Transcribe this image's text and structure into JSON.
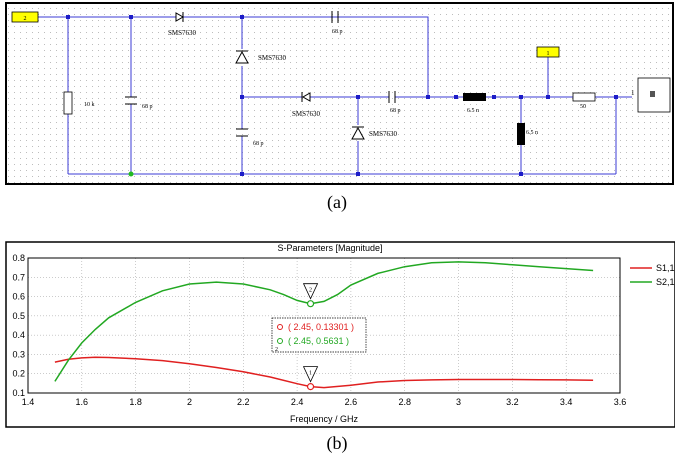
{
  "captions": {
    "a": "(a)",
    "b": "(b)"
  },
  "schematic": {
    "port_left": "2",
    "port_top": "1",
    "port_right": "1",
    "diode_label": "SMS7630",
    "cap_label": "68 p",
    "resistor_left": "10 k",
    "inductor_series": "6.5 n",
    "inductor_shunt": "6.5 n",
    "resistor_right": "50",
    "term_num": "1",
    "colors": {
      "wire": "#3b3bd6",
      "port": "#ffff00",
      "node": "#1c1cc8",
      "ground": "#22bb22"
    }
  },
  "plot": {
    "title": "S-Parameters [Magnitude]",
    "xlabel": "Frequency / GHz",
    "marker_labels": [
      "2",
      "1"
    ],
    "readout_s11": "( 2.45, 0.13301 )",
    "readout_s21": "( 2.45, 0.5631 )",
    "readout_num": "2",
    "colors": {
      "s11": "#e02020",
      "s21": "#22a822"
    }
  },
  "chart_data": {
    "type": "line",
    "title": "S-Parameters [Magnitude]",
    "xlabel": "Frequency / GHz",
    "ylabel": "",
    "xlim": [
      1.4,
      3.6
    ],
    "ylim": [
      0.1,
      0.8
    ],
    "xticks": [
      "1.4",
      "1.6",
      "1.8",
      "2",
      "2.2",
      "2.4",
      "2.6",
      "2.8",
      "3",
      "3.2",
      "3.4",
      "3.6"
    ],
    "yticks": [
      "0.1",
      "0.2",
      "0.3",
      "0.4",
      "0.5",
      "0.6",
      "0.7",
      "0.8"
    ],
    "grid": true,
    "legend": "right",
    "series": [
      {
        "name": "S1,1",
        "x": [
          1.5,
          1.55,
          1.6,
          1.65,
          1.7,
          1.8,
          1.9,
          2.0,
          2.1,
          2.2,
          2.3,
          2.4,
          2.45,
          2.5,
          2.6,
          2.7,
          2.8,
          2.9,
          3.0,
          3.1,
          3.2,
          3.3,
          3.4,
          3.5
        ],
        "y": [
          0.26,
          0.275,
          0.282,
          0.285,
          0.284,
          0.278,
          0.268,
          0.252,
          0.232,
          0.21,
          0.183,
          0.148,
          0.133,
          0.128,
          0.14,
          0.157,
          0.165,
          0.168,
          0.17,
          0.17,
          0.17,
          0.169,
          0.168,
          0.166
        ]
      },
      {
        "name": "S2,1",
        "x": [
          1.5,
          1.55,
          1.6,
          1.65,
          1.7,
          1.8,
          1.9,
          2.0,
          2.1,
          2.2,
          2.3,
          2.35,
          2.4,
          2.45,
          2.5,
          2.55,
          2.6,
          2.7,
          2.8,
          2.9,
          3.0,
          3.1,
          3.2,
          3.3,
          3.4,
          3.5
        ],
        "y": [
          0.16,
          0.27,
          0.36,
          0.43,
          0.49,
          0.57,
          0.63,
          0.665,
          0.675,
          0.665,
          0.635,
          0.61,
          0.58,
          0.5631,
          0.575,
          0.61,
          0.66,
          0.72,
          0.755,
          0.775,
          0.78,
          0.775,
          0.765,
          0.755,
          0.745,
          0.735
        ]
      }
    ],
    "markers": [
      {
        "label": "2",
        "x": 2.45,
        "y": 0.5631,
        "series": "S2,1"
      },
      {
        "label": "1",
        "x": 2.45,
        "y": 0.13301,
        "series": "S1,1"
      }
    ]
  }
}
